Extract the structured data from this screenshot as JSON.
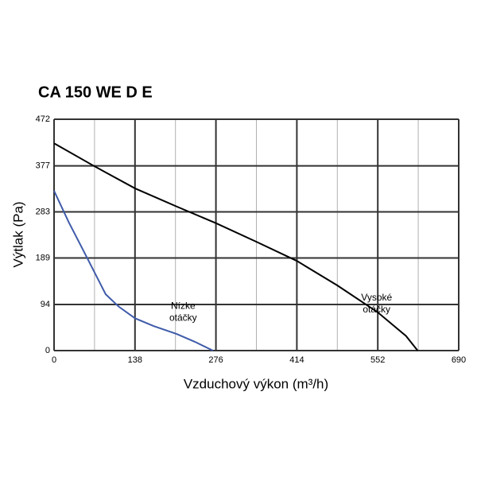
{
  "chart_data": {
    "type": "line",
    "title": "CA 150 WE D E",
    "x_label": "Vzduchový výkon (m³/h)",
    "y_label": "Výtlak (Pa)",
    "xlim": [
      0,
      690
    ],
    "xticks": [
      0,
      138,
      276,
      414,
      552,
      690
    ],
    "minor_xticks": [
      69,
      207,
      345,
      483,
      621
    ],
    "ylim": [
      0,
      472
    ],
    "yticks": [
      0,
      94,
      189,
      283,
      377,
      472
    ],
    "grid": true,
    "series": [
      {
        "color": "#000000",
        "x": [
          0,
          69,
          138,
          207,
          276,
          345,
          414,
          483,
          552,
          600,
          620
        ],
        "values": [
          423,
          376,
          331,
          295,
          260,
          222,
          183,
          133,
          78,
          30,
          0
        ]
      },
      {
        "color": "#3f5ba9",
        "x": [
          0,
          25,
          50,
          88,
          110,
          138,
          170,
          209,
          240,
          271
        ],
        "values": [
          326,
          262,
          204,
          115,
          90,
          66,
          50,
          34,
          18,
          0
        ]
      }
    ],
    "annotations": [
      {
        "lines": [
          "Nízke",
          "otáčky"
        ],
        "x": 220,
        "y": 78
      },
      {
        "lines": [
          "Vysoké",
          "otáčky"
        ],
        "x": 550,
        "y": 95
      }
    ]
  }
}
